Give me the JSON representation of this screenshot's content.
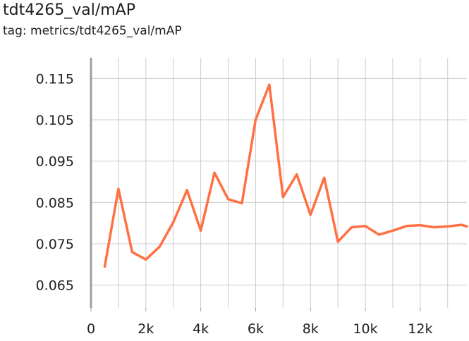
{
  "card": {
    "title": "tdt4265_val/mAP",
    "tag": "tag: metrics/tdt4265_val/mAP"
  },
  "colors": {
    "series": "#ff7043",
    "grid": "#cccccc",
    "axis": "#9e9e9e",
    "text": "#212121"
  },
  "chart_data": {
    "type": "line",
    "title": "tdt4265_val/mAP",
    "xlabel": "",
    "ylabel": "",
    "xlim": [
      0,
      13700
    ],
    "ylim": [
      0.0595,
      0.12
    ],
    "x_ticks": [
      0,
      2000,
      4000,
      6000,
      8000,
      10000,
      12000
    ],
    "x_tick_labels": [
      "0",
      "2k",
      "4k",
      "6k",
      "8k",
      "10k",
      "12k"
    ],
    "y_ticks": [
      0.065,
      0.075,
      0.085,
      0.095,
      0.105,
      0.115
    ],
    "y_tick_labels": [
      "0.065",
      "0.075",
      "0.085",
      "0.095",
      "0.105",
      "0.115"
    ],
    "grid": true,
    "series": [
      {
        "x": [
          500,
          1000,
          1500,
          2000,
          2500,
          3000,
          3500,
          4000,
          4500,
          5000,
          5500,
          6000,
          6500,
          7000,
          7500,
          8000,
          8500,
          9000,
          9500,
          10000,
          10500,
          11000,
          11500,
          12000,
          12500,
          13000,
          13500,
          13700
        ],
        "y": [
          0.0695,
          0.0883,
          0.073,
          0.0712,
          0.0743,
          0.0802,
          0.088,
          0.0782,
          0.0922,
          0.0858,
          0.0848,
          0.105,
          0.1135,
          0.0863,
          0.0918,
          0.082,
          0.091,
          0.0755,
          0.079,
          0.0793,
          0.0772,
          0.0782,
          0.0793,
          0.0795,
          0.079,
          0.0792,
          0.0796,
          0.0792
        ]
      }
    ]
  }
}
